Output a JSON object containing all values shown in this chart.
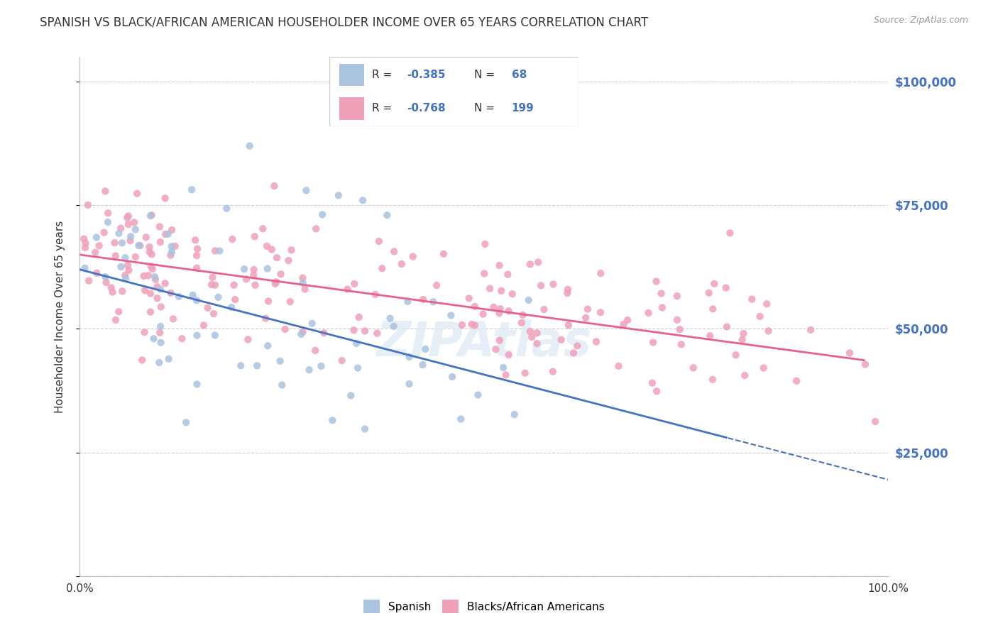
{
  "title": "SPANISH VS BLACK/AFRICAN AMERICAN HOUSEHOLDER INCOME OVER 65 YEARS CORRELATION CHART",
  "source": "Source: ZipAtlas.com",
  "ylabel": "Householder Income Over 65 years",
  "xlim": [
    0.0,
    100.0
  ],
  "ylim": [
    0,
    105000
  ],
  "yticks": [
    0,
    25000,
    50000,
    75000,
    100000
  ],
  "ytick_labels": [
    "",
    "$25,000",
    "$50,000",
    "$75,000",
    "$100,000"
  ],
  "spanish_color": "#aac4e0",
  "black_color": "#f0a0b8",
  "spanish_line_color": "#4472c4",
  "black_line_color": "#e86090",
  "r_spanish": "-0.385",
  "n_spanish": "68",
  "r_black": "-0.768",
  "n_black": "199",
  "title_fontsize": 12,
  "axis_label_color": "#4472c4",
  "background_color": "#ffffff",
  "grid_color": "#cccccc",
  "watermark": "ZIPAtlas",
  "legend_label_color": "#333333"
}
